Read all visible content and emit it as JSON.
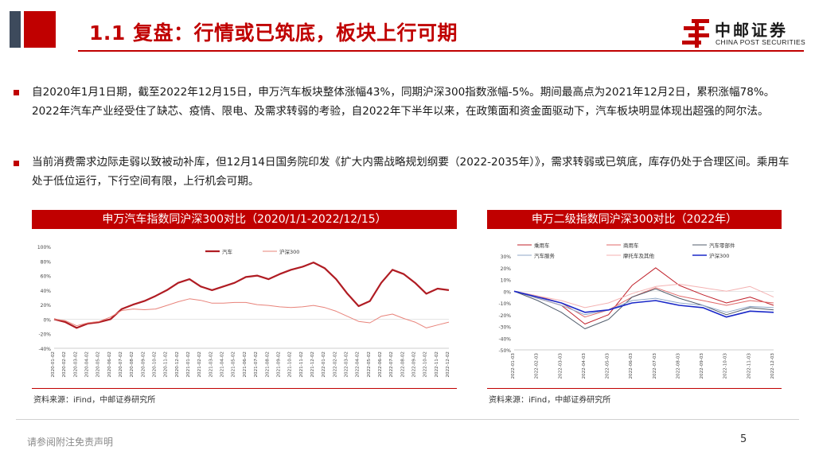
{
  "header": {
    "title": "1.1 复盘：行情或已筑底，板块上行可期",
    "logo_cn": "中邮证券",
    "logo_en": "CHINA POST SECURITIES"
  },
  "bullets": [
    "自2020年1月1日期，截至2022年12月15日，申万汽车板块整体涨幅43%，同期沪深300指数涨幅-5%。期间最高点为2021年12月2日，累积涨幅78%。 2022年汽车产业经受住了缺芯、疫情、限电、及需求转弱的考验，自2022年下半年以来，在政策面和资金面驱动下，汽车板块明显体现出超强的阿尔法。",
    "当前消费需求边际走弱以致被动补库，但12月14日国务院印发《扩大内需战略规划纲要（2022-2035年）》，需求转弱或已筑底，库存仍处于合理区间。乘用车处于低位运行，下行空间有限，上行机会可期。"
  ],
  "left_panel": {
    "title": "申万汽车指数同沪深300对比（2020/1/1-2022/12/15）",
    "source": "资料来源：iFind，中邮证券研究所"
  },
  "right_panel": {
    "title": "申万二级指数同沪深300对比（2022年）",
    "source": "资料来源：iFind，中邮证券研究所"
  },
  "footer": {
    "disclaimer": "请参阅附注免责声明",
    "page": "5"
  },
  "colors": {
    "brand_red": "#c00000",
    "hs300_light": "#e8837a"
  },
  "chart_data": [
    {
      "type": "line",
      "ylim": [
        -40,
        100
      ],
      "yticks": [
        "100%",
        "80%",
        "60%",
        "40%",
        "20%",
        "0%",
        "-20%",
        "-40%"
      ],
      "x": [
        "2020-01-02",
        "2020-02-02",
        "2020-03-02",
        "2020-04-02",
        "2020-05-02",
        "2020-06-02",
        "2020-07-02",
        "2020-08-02",
        "2020-09-02",
        "2020-10-02",
        "2020-11-02",
        "2020-12-02",
        "2021-01-02",
        "2021-02-02",
        "2021-03-02",
        "2021-04-02",
        "2021-05-02",
        "2021-06-02",
        "2021-07-02",
        "2021-08-02",
        "2021-09-02",
        "2021-10-02",
        "2021-11-02",
        "2021-12-02",
        "2022-01-02",
        "2022-02-02",
        "2022-03-02",
        "2022-04-02",
        "2022-05-02",
        "2022-06-02",
        "2022-07-02",
        "2022-08-02",
        "2022-09-02",
        "2022-10-02",
        "2022-11-02",
        "2022-12-02"
      ],
      "legend_position": "top",
      "series": [
        {
          "name": "汽车",
          "color": "#b01c23",
          "values": [
            0,
            -4,
            -12,
            -6,
            -4,
            0,
            14,
            20,
            25,
            32,
            40,
            50,
            55,
            45,
            40,
            45,
            50,
            58,
            60,
            55,
            62,
            68,
            72,
            78,
            70,
            55,
            35,
            18,
            25,
            50,
            68,
            62,
            50,
            35,
            42,
            40
          ]
        },
        {
          "name": "沪深300",
          "color": "#e8837a",
          "values": [
            0,
            -2,
            -9,
            -5,
            -3,
            3,
            12,
            14,
            13,
            14,
            19,
            24,
            28,
            26,
            22,
            22,
            23,
            23,
            20,
            19,
            17,
            16,
            17,
            19,
            16,
            11,
            4,
            -3,
            -5,
            4,
            7,
            1,
            -4,
            -12,
            -8,
            -4
          ]
        }
      ]
    },
    {
      "type": "line",
      "ylim": [
        -50,
        30
      ],
      "yticks": [
        "30%",
        "20%",
        "10%",
        "0%",
        "-10%",
        "-20%",
        "-30%",
        "-40%",
        "-50%"
      ],
      "x": [
        "2022-01-03",
        "2022-02-03",
        "2022-03-03",
        "2022-04-03",
        "2022-05-03",
        "2022-06-03",
        "2022-07-03",
        "2022-08-03",
        "2022-09-03",
        "2022-10-03",
        "2022-11-03",
        "2022-12-03"
      ],
      "legend_position": "top",
      "series": [
        {
          "name": "乘用车",
          "color": "#c0202a",
          "values": [
            0,
            -6,
            -12,
            -28,
            -20,
            5,
            20,
            5,
            -3,
            -10,
            -5,
            -12
          ]
        },
        {
          "name": "商用车",
          "color": "#e06a6a",
          "values": [
            0,
            -4,
            -10,
            -22,
            -16,
            -5,
            3,
            -4,
            -8,
            -12,
            -8,
            -10
          ]
        },
        {
          "name": "汽车零部件",
          "color": "#505c6b",
          "values": [
            0,
            -8,
            -18,
            -32,
            -24,
            -5,
            2,
            -6,
            -12,
            -20,
            -14,
            -16
          ]
        },
        {
          "name": "汽车服务",
          "color": "#8fa7c7",
          "values": [
            0,
            -6,
            -12,
            -20,
            -16,
            -8,
            -6,
            -10,
            -12,
            -18,
            -13,
            -14
          ]
        },
        {
          "name": "摩托车及其他",
          "color": "#f4b2b2",
          "values": [
            0,
            -4,
            -8,
            -14,
            -10,
            -2,
            4,
            6,
            3,
            0,
            4,
            -5
          ]
        },
        {
          "name": "沪深300",
          "color": "#1a28c8",
          "values": [
            0,
            -5,
            -10,
            -18,
            -16,
            -10,
            -8,
            -12,
            -14,
            -22,
            -17,
            -18
          ]
        }
      ]
    }
  ]
}
